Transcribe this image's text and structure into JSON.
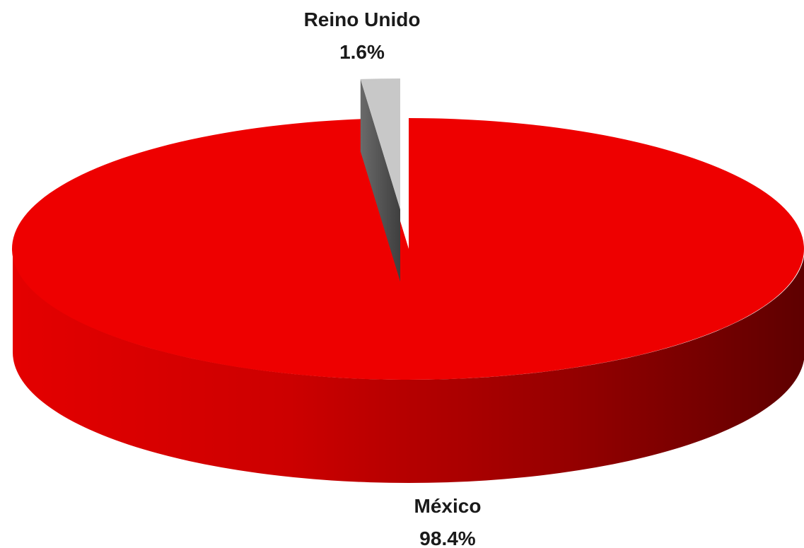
{
  "chart_data": {
    "type": "pie",
    "style": "3d-exploded",
    "slices": [
      {
        "label": "México",
        "value": 98.4,
        "value_label": "98.4%",
        "color": "#ee0000",
        "side_dark": "#6b0000"
      },
      {
        "label": "Reino Unido",
        "value": 1.6,
        "value_label": "1.6%",
        "color": "#c8c8c8",
        "side_dark": "#555555"
      }
    ],
    "legend": "none",
    "data_labels": "outside"
  }
}
